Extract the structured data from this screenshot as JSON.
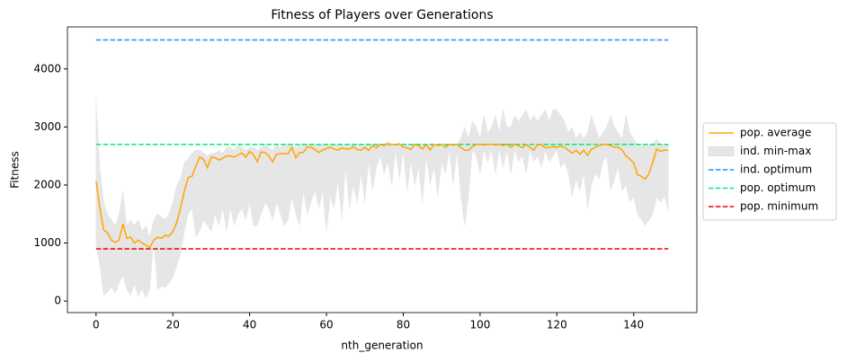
{
  "chart_data": {
    "type": "line",
    "title": "Fitness of Players over Generations",
    "xlabel": "nth_generation",
    "ylabel": "Fitness",
    "xlim": [
      -7.45,
      156.45
    ],
    "ylim": [
      -199,
      4724
    ],
    "xticks": [
      0,
      20,
      40,
      60,
      80,
      100,
      120,
      140
    ],
    "yticks": [
      0,
      1000,
      2000,
      3000,
      4000
    ],
    "legend": "outside-right",
    "x": [
      0,
      1,
      2,
      3,
      4,
      5,
      6,
      7,
      8,
      9,
      10,
      11,
      12,
      13,
      14,
      15,
      16,
      17,
      18,
      19,
      20,
      21,
      22,
      23,
      24,
      25,
      26,
      27,
      28,
      29,
      30,
      31,
      32,
      33,
      34,
      35,
      36,
      37,
      38,
      39,
      40,
      41,
      42,
      43,
      44,
      45,
      46,
      47,
      48,
      49,
      50,
      51,
      52,
      53,
      54,
      55,
      56,
      57,
      58,
      59,
      60,
      61,
      62,
      63,
      64,
      65,
      66,
      67,
      68,
      69,
      70,
      71,
      72,
      73,
      74,
      75,
      76,
      77,
      78,
      79,
      80,
      81,
      82,
      83,
      84,
      85,
      86,
      87,
      88,
      89,
      90,
      91,
      92,
      93,
      94,
      95,
      96,
      97,
      98,
      99,
      100,
      101,
      102,
      103,
      104,
      105,
      106,
      107,
      108,
      109,
      110,
      111,
      112,
      113,
      114,
      115,
      116,
      117,
      118,
      119,
      120,
      121,
      122,
      123,
      124,
      125,
      126,
      127,
      128,
      129,
      130,
      131,
      132,
      133,
      134,
      135,
      136,
      137,
      138,
      139,
      140,
      141,
      142,
      143,
      144,
      145,
      146,
      147,
      148,
      149
    ],
    "series": [
      {
        "name": "pop. average",
        "color": "#ffa500",
        "style": "solid",
        "values": [
          2070,
          1600,
          1220,
          1180,
          1050,
          1010,
          1050,
          1330,
          1080,
          1100,
          1000,
          1050,
          1000,
          960,
          920,
          1050,
          1100,
          1080,
          1130,
          1120,
          1200,
          1350,
          1600,
          1900,
          2130,
          2150,
          2330,
          2480,
          2440,
          2300,
          2480,
          2470,
          2430,
          2460,
          2500,
          2500,
          2480,
          2520,
          2550,
          2480,
          2580,
          2520,
          2400,
          2570,
          2560,
          2500,
          2400,
          2530,
          2540,
          2540,
          2540,
          2650,
          2470,
          2560,
          2560,
          2660,
          2650,
          2610,
          2560,
          2600,
          2630,
          2650,
          2620,
          2600,
          2640,
          2620,
          2620,
          2660,
          2610,
          2600,
          2650,
          2600,
          2680,
          2640,
          2700,
          2680,
          2710,
          2700,
          2690,
          2710,
          2650,
          2640,
          2610,
          2700,
          2680,
          2620,
          2700,
          2600,
          2700,
          2680,
          2700,
          2650,
          2700,
          2690,
          2700,
          2650,
          2600,
          2600,
          2660,
          2700,
          2700,
          2690,
          2700,
          2700,
          2690,
          2700,
          2680,
          2700,
          2650,
          2700,
          2680,
          2640,
          2700,
          2650,
          2600,
          2700,
          2690,
          2640,
          2650,
          2660,
          2650,
          2670,
          2650,
          2600,
          2550,
          2600,
          2530,
          2600,
          2510,
          2620,
          2650,
          2680,
          2700,
          2700,
          2680,
          2650,
          2650,
          2600,
          2500,
          2450,
          2380,
          2180,
          2150,
          2100,
          2200,
          2400,
          2620,
          2580,
          2600,
          2600
        ]
      },
      {
        "name": "ind. min-max",
        "color": "#e6e6e6",
        "style": "band",
        "lower": [
          1000,
          600,
          100,
          150,
          250,
          130,
          300,
          450,
          200,
          100,
          300,
          80,
          200,
          50,
          200,
          1050,
          200,
          250,
          230,
          300,
          400,
          600,
          800,
          1200,
          1500,
          1600,
          1100,
          1200,
          1400,
          1300,
          1200,
          1500,
          1300,
          1600,
          1200,
          1600,
          1300,
          1500,
          1600,
          1400,
          1700,
          1300,
          1300,
          1500,
          1700,
          1600,
          1400,
          1700,
          1500,
          1300,
          1400,
          1800,
          1500,
          1300,
          1900,
          1500,
          1700,
          1900,
          1600,
          1900,
          1200,
          1800,
          1600,
          2100,
          1400,
          2300,
          1600,
          2000,
          1700,
          2200,
          1700,
          2400,
          1900,
          2300,
          2500,
          2200,
          2400,
          2000,
          2600,
          2100,
          2600,
          1900,
          2400,
          2000,
          2300,
          1700,
          2500,
          2000,
          2300,
          1800,
          2400,
          2200,
          2600,
          2000,
          2600,
          1800,
          1300,
          1800,
          2600,
          2500,
          2200,
          2600,
          2400,
          2600,
          2200,
          2600,
          2300,
          2600,
          2200,
          2600,
          2400,
          2500,
          2200,
          2600,
          2400,
          2500,
          2300,
          2600,
          2400,
          2500,
          2600,
          2300,
          2400,
          2200,
          1800,
          2100,
          1900,
          2200,
          1600,
          2000,
          2200,
          2100,
          2400,
          2500,
          1900,
          2100,
          2300,
          1900,
          2000,
          1700,
          1800,
          1500,
          1400,
          1300,
          1400,
          1500,
          1800,
          1700,
          1800,
          1550
        ],
        "upper": [
          3470,
          2300,
          1700,
          1500,
          1400,
          1300,
          1500,
          1900,
          1300,
          1400,
          1300,
          1400,
          1200,
          1300,
          1100,
          1400,
          1500,
          1450,
          1400,
          1500,
          1700,
          2000,
          2100,
          2400,
          2450,
          2550,
          2600,
          2600,
          2550,
          2500,
          2550,
          2550,
          2600,
          2550,
          2650,
          2650,
          2600,
          2700,
          2650,
          2600,
          2650,
          2650,
          2600,
          2650,
          2700,
          2650,
          2600,
          2700,
          2650,
          2700,
          2700,
          2700,
          2650,
          2700,
          2700,
          2700,
          2700,
          2700,
          2700,
          2700,
          2700,
          2700,
          2700,
          2700,
          2700,
          2700,
          2700,
          2700,
          2700,
          2700,
          2700,
          2700,
          2700,
          2700,
          2700,
          2700,
          2750,
          2700,
          2700,
          2700,
          2700,
          2700,
          2700,
          2700,
          2700,
          2700,
          2700,
          2700,
          2700,
          2700,
          2700,
          2700,
          2700,
          2700,
          2700,
          2800,
          3000,
          2800,
          3100,
          3000,
          2800,
          3200,
          2900,
          3000,
          3200,
          2900,
          3300,
          3000,
          3000,
          3200,
          3100,
          3200,
          3300,
          3100,
          3200,
          3100,
          3200,
          3300,
          3100,
          3300,
          3300,
          3200,
          3100,
          2900,
          3000,
          2800,
          2900,
          2800,
          2900,
          3200,
          3000,
          2800,
          2900,
          3000,
          3200,
          3000,
          2900,
          2800,
          3200,
          2900,
          2800,
          2700,
          2700,
          2700,
          2700,
          2700,
          2800,
          2700,
          2700,
          2700
        ]
      },
      {
        "name": "ind. optimum",
        "color": "#1e90ff",
        "style": "dashed",
        "value": 4500
      },
      {
        "name": "pop. optimum",
        "color": "#00ee76",
        "style": "dashed",
        "value": 2700
      },
      {
        "name": "pop. minimum",
        "color": "#ee0000",
        "style": "dashed",
        "value": 900
      }
    ]
  }
}
